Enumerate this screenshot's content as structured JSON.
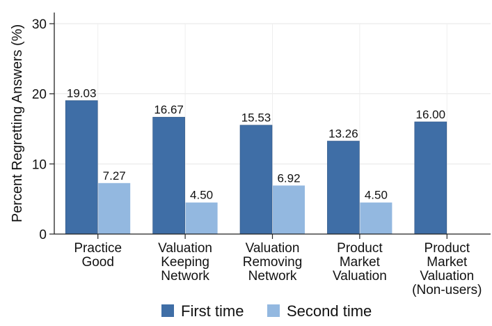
{
  "chart_data": {
    "type": "bar",
    "title": "",
    "xlabel": "",
    "ylabel": "Percent Regretting Answers (%)",
    "ylim": [
      0,
      30
    ],
    "yticks": [
      0,
      10,
      20,
      30
    ],
    "grid": true,
    "legend_position": "bottom",
    "categories": [
      [
        "Practice",
        "Good"
      ],
      [
        "Valuation",
        "Keeping",
        "Network"
      ],
      [
        "Valuation",
        "Removing",
        "Network"
      ],
      [
        "Product",
        "Market",
        "Valuation"
      ],
      [
        "Product",
        "Market",
        "Valuation",
        "(Non-users)"
      ]
    ],
    "series": [
      {
        "name": "First time",
        "color": "#3f6ea6",
        "values": [
          19.03,
          16.67,
          15.53,
          13.26,
          16.0
        ],
        "labels": [
          "19.03",
          "16.67",
          "15.53",
          "13.26",
          "16.00"
        ]
      },
      {
        "name": "Second time",
        "color": "#93b8e0",
        "values": [
          7.27,
          4.5,
          6.92,
          4.5,
          null
        ],
        "labels": [
          "7.27",
          "4.50",
          "6.92",
          "4.50",
          null
        ]
      }
    ]
  }
}
